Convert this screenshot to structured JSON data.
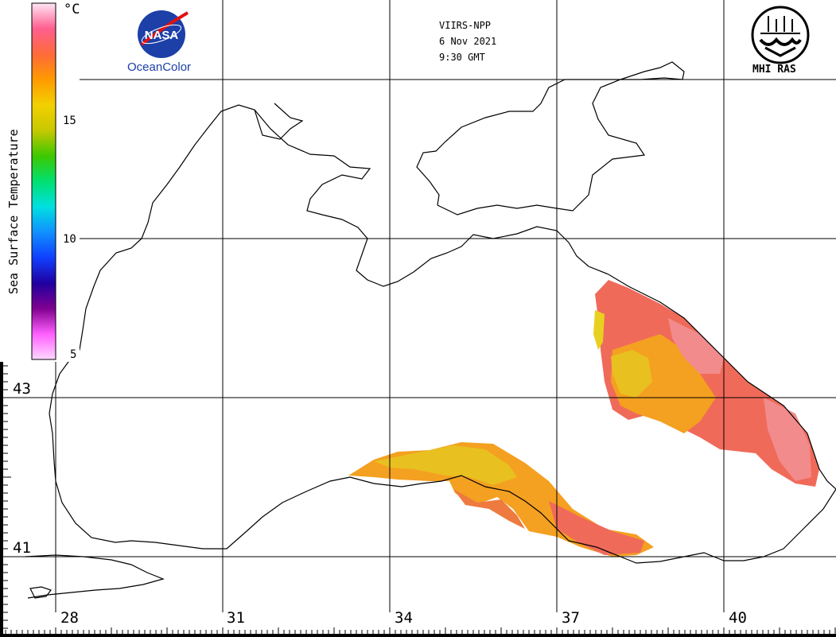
{
  "header": {
    "satellite": "VIIRS-NPP",
    "date": "6 Nov 2021",
    "time": "9:30 GMT"
  },
  "logos": {
    "nasa_badge": "NASA",
    "nasa_caption": "OceanColor",
    "mhi_caption": "MHI RAS"
  },
  "colorbar": {
    "title": "Sea Surface Temperature",
    "unit": "°C",
    "ticks": [
      "15",
      "10",
      "5"
    ],
    "colors": [
      "#ffe6f5",
      "#ff5f8f",
      "#ff6a3a",
      "#ff9a00",
      "#f2d000",
      "#c8c800",
      "#3cc800",
      "#00e070",
      "#00e0e0",
      "#1090ff",
      "#1040ff",
      "#2000a0",
      "#800090",
      "#ff60ff",
      "#ffd8ff"
    ]
  },
  "axes": {
    "lat_labels": [
      "43",
      "41"
    ],
    "lon_labels": [
      "28",
      "31",
      "34",
      "37",
      "40"
    ]
  },
  "palette": {
    "coast": "#000000",
    "grid": "#000000",
    "sst_warm": "#f06a5a",
    "sst_mid": "#f4a020",
    "sst_cool": "#e8d020"
  }
}
